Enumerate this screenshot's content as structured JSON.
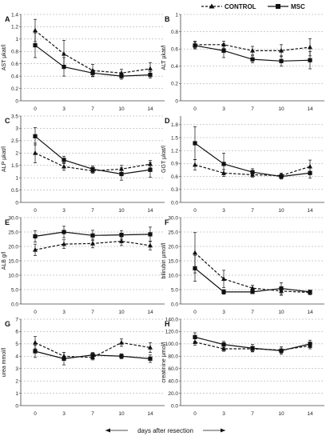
{
  "legend": {
    "control": "CONTROL",
    "msc": "MSC"
  },
  "x_caption": "days after resection",
  "chart_data": [
    {
      "type": "line",
      "panel": "A",
      "ylabel": "AST µkat/l",
      "ylim": [
        0,
        1.4
      ],
      "yticks": [
        0,
        0.2,
        0.4,
        0.6,
        0.8,
        1,
        1.2,
        1.4
      ],
      "ytick_labels": [
        "0",
        "0.2",
        "0.4",
        "0.6",
        "0.8",
        "1",
        "1.2",
        "1.4"
      ],
      "x": [
        0,
        3,
        7,
        10,
        14
      ],
      "series": [
        {
          "name": "CONTROL",
          "values": [
            1.14,
            0.76,
            0.49,
            0.45,
            0.52
          ],
          "err": [
            0.18,
            0.22,
            0.1,
            0.06,
            0.1
          ]
        },
        {
          "name": "MSC",
          "values": [
            0.9,
            0.55,
            0.45,
            0.4,
            0.42
          ],
          "err": [
            0.2,
            0.15,
            0.05,
            0.05,
            0.05
          ]
        }
      ]
    },
    {
      "type": "line",
      "panel": "B",
      "ylabel": "ALT µkat/l",
      "ylim": [
        0,
        1.0
      ],
      "yticks": [
        0,
        0.2,
        0.4,
        0.6,
        0.8,
        1
      ],
      "ytick_labels": [
        "0",
        "0.2",
        "0.4",
        "0.6",
        "0.8",
        "1"
      ],
      "x": [
        0,
        3,
        7,
        10,
        14
      ],
      "series": [
        {
          "name": "CONTROL",
          "values": [
            0.65,
            0.65,
            0.58,
            0.58,
            0.62
          ],
          "err": [
            0.04,
            0.04,
            0.05,
            0.07,
            0.1
          ]
        },
        {
          "name": "MSC",
          "values": [
            0.64,
            0.58,
            0.48,
            0.46,
            0.47
          ],
          "err": [
            0.04,
            0.08,
            0.04,
            0.06,
            0.1
          ]
        }
      ]
    },
    {
      "type": "line",
      "panel": "C",
      "ylabel": "ALP µkat/l",
      "ylim": [
        0,
        3.5
      ],
      "yticks": [
        0,
        0.5,
        1,
        1.5,
        2,
        2.5,
        3,
        3.5
      ],
      "ytick_labels": [
        "0",
        "0.5",
        "1",
        "1.5",
        "2",
        "2.5",
        "3",
        "3.5"
      ],
      "x": [
        0,
        3,
        7,
        10,
        14
      ],
      "series": [
        {
          "name": "CONTROL",
          "values": [
            2.0,
            1.45,
            1.28,
            1.35,
            1.55
          ],
          "err": [
            0.4,
            0.15,
            0.1,
            0.15,
            0.15
          ]
        },
        {
          "name": "MSC",
          "values": [
            2.68,
            1.72,
            1.35,
            1.15,
            1.32
          ],
          "err": [
            0.35,
            0.15,
            0.12,
            0.25,
            0.3
          ]
        }
      ]
    },
    {
      "type": "line",
      "panel": "D",
      "ylabel": "GGT µkat/l",
      "ylim": [
        0,
        2.0
      ],
      "yticks": [
        0,
        0.3,
        0.6,
        0.9,
        1.2,
        1.5,
        1.8
      ],
      "ytick_labels": [
        "0.0",
        "0.3",
        "0.6",
        "0.9",
        "1.2",
        "1.5",
        "1.8"
      ],
      "x": [
        0,
        3,
        7,
        10,
        14
      ],
      "series": [
        {
          "name": "CONTROL",
          "values": [
            0.87,
            0.68,
            0.64,
            0.62,
            0.83
          ],
          "err": [
            0.12,
            0.08,
            0.06,
            0.06,
            0.15
          ]
        },
        {
          "name": "MSC",
          "values": [
            1.37,
            0.89,
            0.7,
            0.6,
            0.68
          ],
          "err": [
            0.38,
            0.25,
            0.08,
            0.06,
            0.12
          ]
        }
      ]
    },
    {
      "type": "line",
      "panel": "E",
      "ylabel": "ALB g/l",
      "ylim": [
        0,
        30
      ],
      "yticks": [
        0,
        5,
        10,
        15,
        20,
        25,
        30
      ],
      "ytick_labels": [
        "0.0",
        "5.0",
        "10.0",
        "15.0",
        "20.0",
        "25.0",
        "30.0"
      ],
      "x": [
        0,
        3,
        7,
        10,
        14
      ],
      "series": [
        {
          "name": "CONTROL",
          "values": [
            18.8,
            20.8,
            21.0,
            21.8,
            20.3
          ],
          "err": [
            2.0,
            1.5,
            1.5,
            1.5,
            1.5
          ]
        },
        {
          "name": "MSC",
          "values": [
            23.5,
            25.0,
            23.8,
            24.0,
            24.2
          ],
          "err": [
            2.0,
            2.0,
            1.8,
            1.5,
            2.5
          ]
        }
      ]
    },
    {
      "type": "line",
      "panel": "F",
      "ylabel": "bilirubin µmol/l",
      "ylim": [
        0,
        30
      ],
      "yticks": [
        0,
        5,
        10,
        15,
        20,
        25,
        30
      ],
      "ytick_labels": [
        "0.0",
        "5.0",
        "10.0",
        "15.0",
        "20.0",
        "25.0",
        "30.0"
      ],
      "x": [
        0,
        3,
        7,
        10,
        14
      ],
      "series": [
        {
          "name": "CONTROL",
          "values": [
            17.8,
            8.7,
            5.5,
            4.5,
            4.0
          ],
          "err": [
            7.0,
            3.0,
            1.0,
            1.5,
            0.8
          ]
        },
        {
          "name": "MSC",
          "values": [
            12.4,
            4.2,
            4.2,
            5.4,
            4.2
          ],
          "err": [
            4.5,
            0.8,
            0.6,
            2.0,
            0.5
          ]
        }
      ]
    },
    {
      "type": "line",
      "panel": "G",
      "ylabel": "urea mmol/l",
      "ylim": [
        0,
        7
      ],
      "yticks": [
        0,
        1,
        2,
        3,
        4,
        5,
        6,
        7
      ],
      "ytick_labels": [
        "0",
        "1",
        "2",
        "3",
        "4",
        "5",
        "6",
        "7"
      ],
      "x": [
        0,
        3,
        7,
        10,
        14
      ],
      "series": [
        {
          "name": "CONTROL",
          "values": [
            5.1,
            4.0,
            3.9,
            5.1,
            4.7
          ],
          "err": [
            0.5,
            0.3,
            0.2,
            0.3,
            0.4
          ]
        },
        {
          "name": "MSC",
          "values": [
            4.4,
            3.8,
            4.1,
            4.0,
            3.8
          ],
          "err": [
            0.5,
            0.5,
            0.2,
            0.2,
            0.3
          ]
        }
      ]
    },
    {
      "type": "line",
      "panel": "H",
      "ylabel": "creatinine µmol/l",
      "ylim": [
        0,
        140
      ],
      "yticks": [
        0,
        20,
        40,
        60,
        80,
        100,
        120,
        140
      ],
      "ytick_labels": [
        "0.0",
        "20.0",
        "40.0",
        "60.0",
        "80.0",
        "100.0",
        "120.0",
        "140.0"
      ],
      "x": [
        0,
        3,
        7,
        10,
        14
      ],
      "series": [
        {
          "name": "CONTROL",
          "values": [
            103,
            92,
            92,
            90,
            97
          ],
          "err": [
            5,
            4,
            4,
            5,
            5
          ]
        },
        {
          "name": "MSC",
          "values": [
            111,
            99,
            93,
            89,
            100
          ],
          "err": [
            7,
            5,
            6,
            6,
            6
          ]
        }
      ]
    }
  ]
}
